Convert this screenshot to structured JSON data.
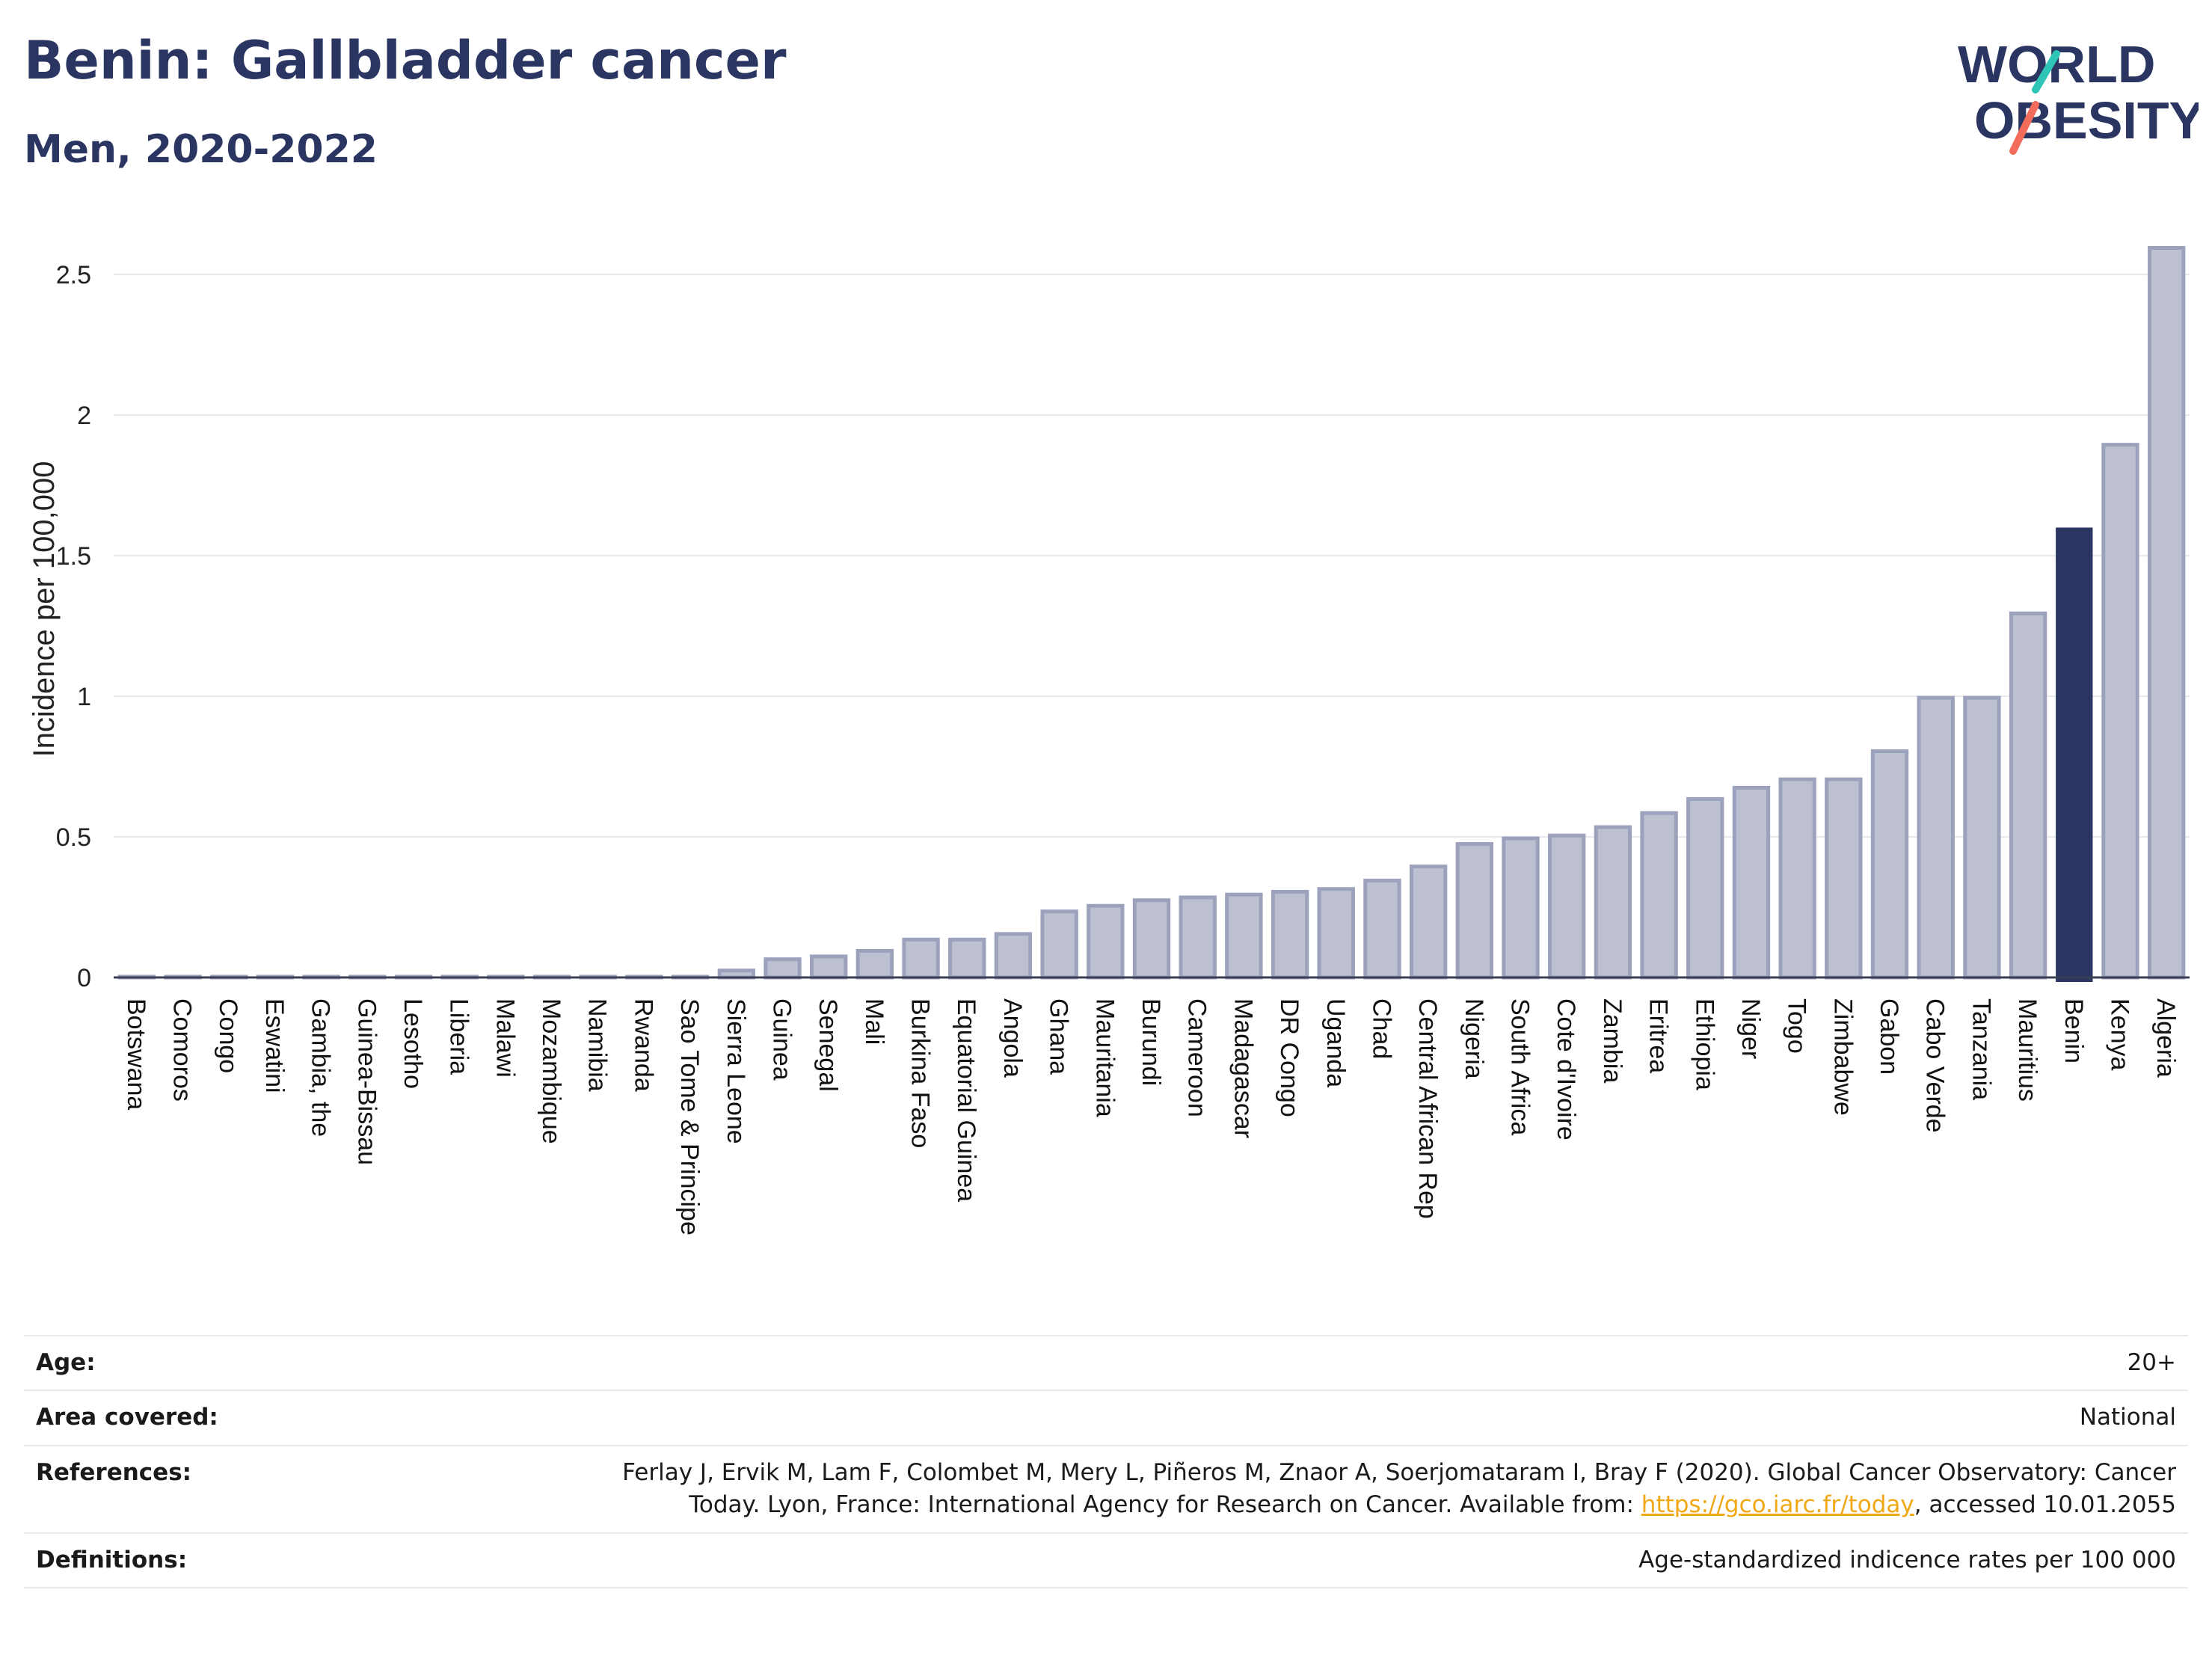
{
  "header": {
    "title": "Benin: Gallbladder cancer",
    "subtitle": "Men, 2020-2022"
  },
  "logo": {
    "line1": "WORLD",
    "line2": "OBESITY",
    "colors": {
      "text": "#2a3561",
      "teal": "#2ec4b6",
      "coral": "#f26b5b"
    }
  },
  "chart_data": {
    "type": "bar",
    "title": "Benin: Gallbladder cancer",
    "subtitle": "Men, 2020-2022",
    "xlabel": "",
    "ylabel": "Incidence per 100,000",
    "ylim": [
      0,
      2.62
    ],
    "yticks": [
      0,
      0.5,
      1,
      1.5,
      2,
      2.5
    ],
    "ytick_labels": [
      "0",
      "0.5",
      "1",
      "1.5",
      "2",
      "2.5"
    ],
    "grid": true,
    "categories": [
      "Botswana",
      "Comoros",
      "Congo",
      "Eswatini",
      "Gambia, the",
      "Guinea-Bissau",
      "Lesotho",
      "Liberia",
      "Malawi",
      "Mozambique",
      "Namibia",
      "Rwanda",
      "Sao Tome & Principe",
      "Sierra Leone",
      "Guinea",
      "Senegal",
      "Mali",
      "Burkina Faso",
      "Equatorial Guinea",
      "Angola",
      "Ghana",
      "Mauritania",
      "Burundi",
      "Cameroon",
      "Madagascar",
      "DR Congo",
      "Uganda",
      "Chad",
      "Central African Rep",
      "Nigeria",
      "South Africa",
      "Cote d'Ivoire",
      "Zambia",
      "Eritrea",
      "Ethiopia",
      "Niger",
      "Togo",
      "Zimbabwe",
      "Gabon",
      "Cabo Verde",
      "Tanzania",
      "Mauritius",
      "Benin",
      "Kenya",
      "Algeria"
    ],
    "values": [
      0,
      0,
      0,
      0,
      0,
      0,
      0,
      0,
      0,
      0,
      0,
      0,
      0,
      0.03,
      0.07,
      0.08,
      0.1,
      0.14,
      0.14,
      0.16,
      0.24,
      0.26,
      0.28,
      0.29,
      0.3,
      0.31,
      0.32,
      0.35,
      0.4,
      0.48,
      0.5,
      0.51,
      0.54,
      0.59,
      0.64,
      0.68,
      0.71,
      0.71,
      0.81,
      1.0,
      1.0,
      1.3,
      1.6,
      1.9,
      2.6
    ],
    "highlight": "Benin",
    "colors": {
      "bar": "#bcc0d0",
      "bar_stroke": "#9ca2bc",
      "highlight": "#2a3561",
      "grid": "#e6e8ee",
      "axis": "#3b3f55"
    }
  },
  "info": {
    "age": {
      "label": "Age:",
      "value": "20+"
    },
    "area": {
      "label": "Area covered:",
      "value": "National"
    },
    "references": {
      "label": "References:",
      "line1": "Ferlay J, Ervik M, Lam F, Colombet M, Mery L, Piñeros M, Znaor A, Soerjomataram I, Bray F (2020). Global Cancer Observatory: Cancer",
      "line2_pre": "Today. Lyon, France: International Agency for Research on Cancer. Available from: ",
      "link": "https://gco.iarc.fr/today",
      "line2_post": ", accessed 10.01.2055"
    },
    "definitions": {
      "label": "Definitions:",
      "value": "Age-standardized indicence rates per 100 000"
    }
  }
}
